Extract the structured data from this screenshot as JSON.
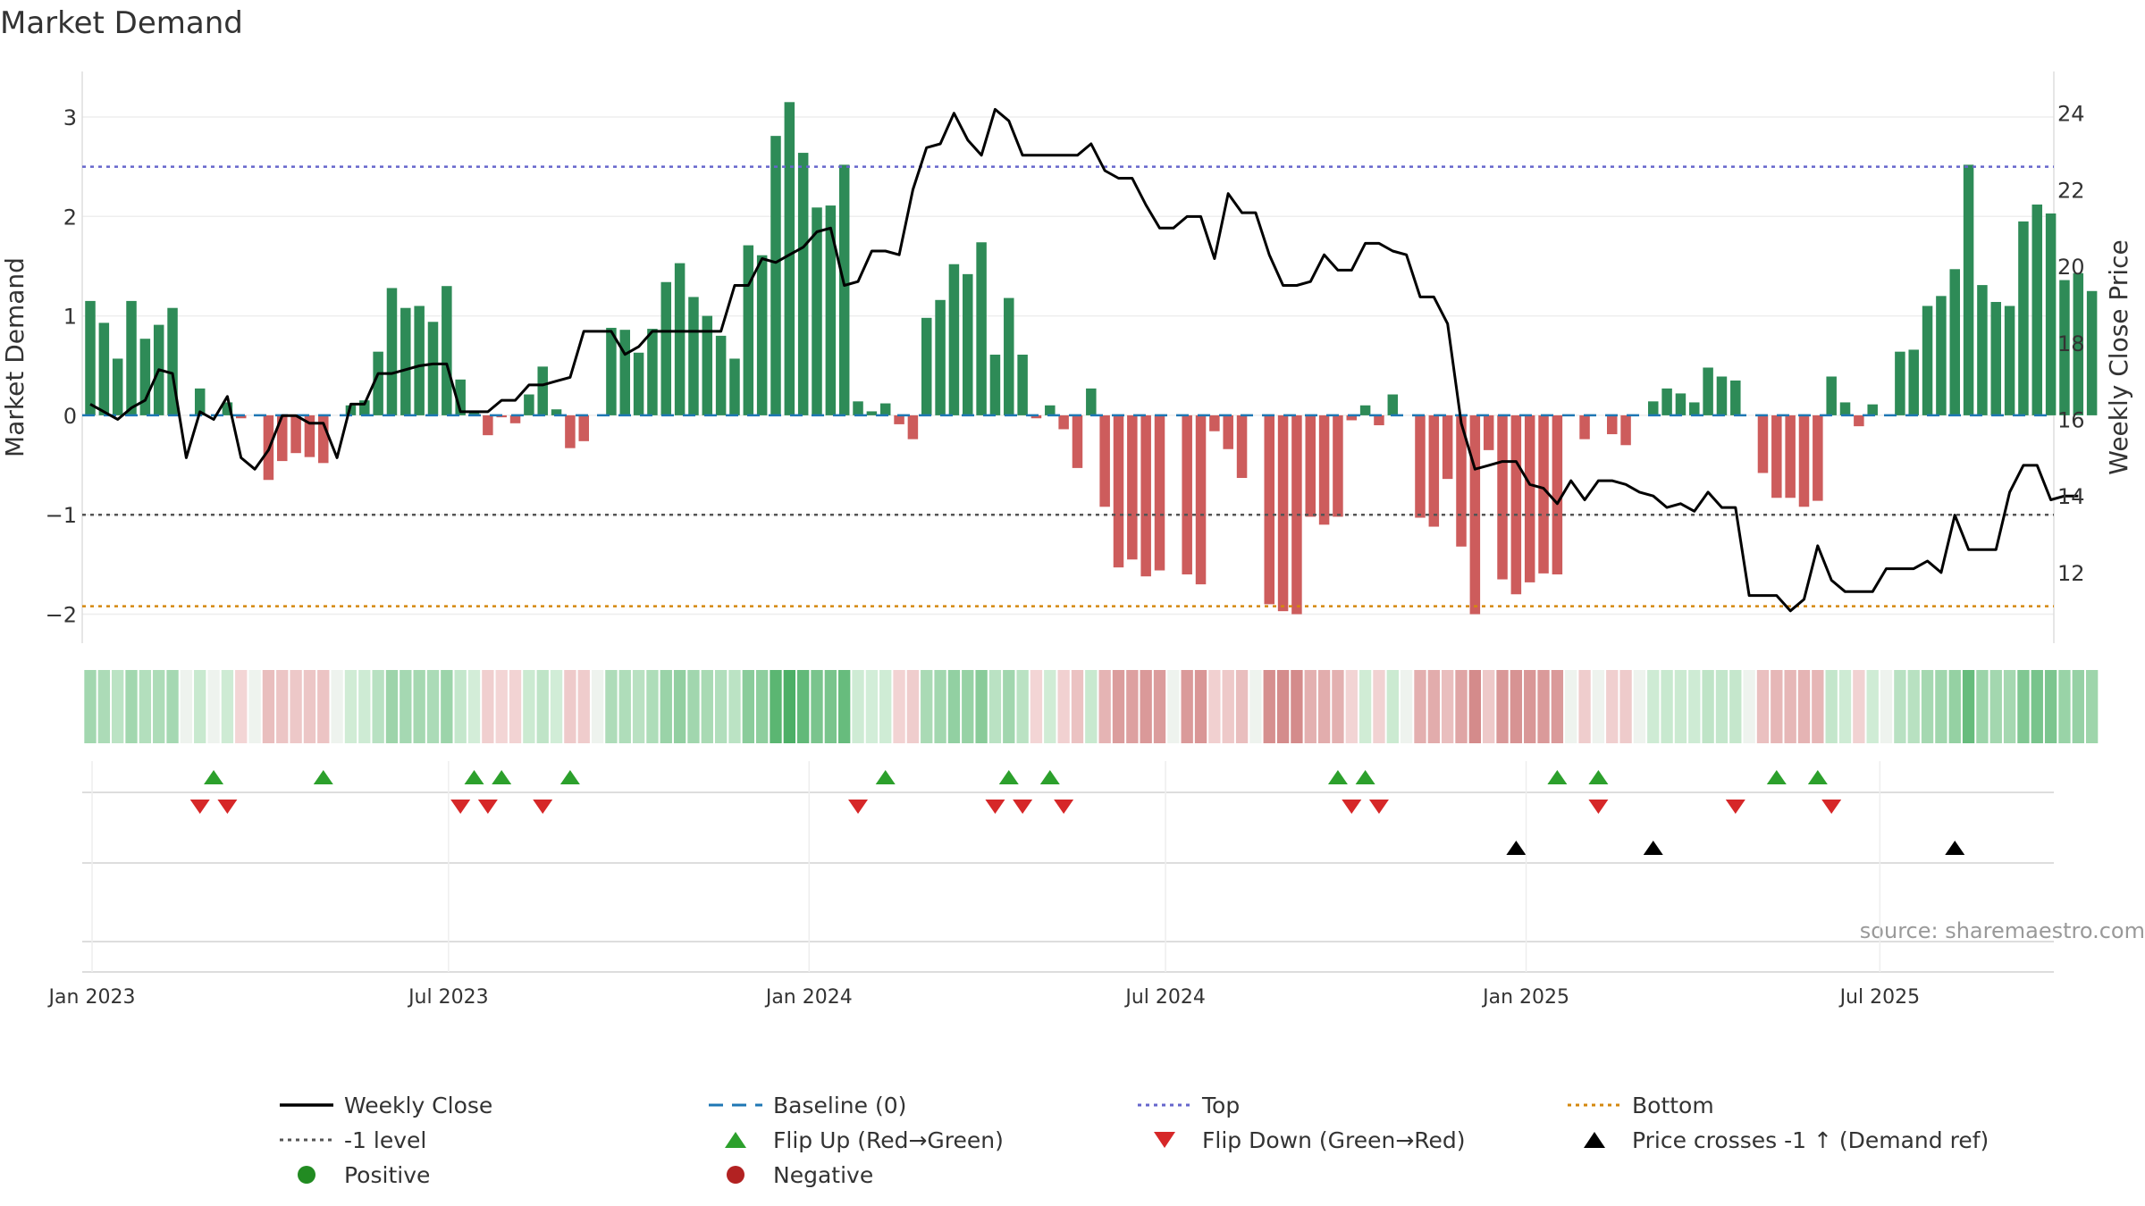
{
  "chart_data": {
    "type": "bar",
    "title": "Market Demand",
    "source": "source: sharemaestro.com",
    "ylabel_left": "Market Demand",
    "ylabel_right": "Weekly Close Price",
    "ylim_left": [
      -2.3,
      3.4
    ],
    "ylim_right": [
      10.6,
      25.0
    ],
    "yticks_left": [
      -2,
      -1,
      0,
      1,
      2,
      3
    ],
    "ytick_labels_left": [
      "−2",
      "−1",
      "0",
      "1",
      "2",
      "3"
    ],
    "yticks_right": [
      12,
      14,
      16,
      18,
      20,
      22,
      24
    ],
    "ytick_labels_right": [
      "12",
      "14",
      "16",
      "18",
      "20",
      "22",
      "24"
    ],
    "x_ticks": [
      {
        "label": "Jan 2023",
        "week": 0
      },
      {
        "label": "Jul 2023",
        "week": 26
      },
      {
        "label": "Jan 2024",
        "week": 52.3
      },
      {
        "label": "Jul 2024",
        "week": 78.3
      },
      {
        "label": "Jan 2025",
        "week": 104.6
      },
      {
        "label": "Jul 2025",
        "week": 130.4
      }
    ],
    "x_start_label": "2023-01-06 (weekly)",
    "reference_lines": {
      "top": 2.5,
      "bottom": -1.92,
      "minus_one": -1,
      "baseline": 0
    },
    "demand": [
      1.15,
      0.93,
      0.57,
      1.15,
      0.77,
      0.91,
      1.08,
      0.0,
      0.27,
      0.0,
      0.13,
      -0.03,
      0.0,
      -0.65,
      -0.46,
      -0.38,
      -0.42,
      -0.48,
      0.0,
      0.1,
      0.15,
      0.64,
      1.28,
      1.08,
      1.1,
      0.94,
      1.3,
      0.36,
      0.03,
      -0.2,
      -0.02,
      -0.08,
      0.21,
      0.49,
      0.06,
      -0.33,
      -0.26,
      0.0,
      0.88,
      0.86,
      0.63,
      0.87,
      1.34,
      1.53,
      1.19,
      1.0,
      0.8,
      0.57,
      1.71,
      1.61,
      2.81,
      3.15,
      2.64,
      2.09,
      2.11,
      2.52,
      0.14,
      0.04,
      0.12,
      -0.09,
      -0.24,
      0.98,
      1.16,
      1.52,
      1.42,
      1.74,
      0.61,
      1.18,
      0.61,
      -0.03,
      0.1,
      -0.14,
      -0.53,
      0.27,
      -0.92,
      -1.53,
      -1.45,
      -1.62,
      -1.56,
      0.0,
      -1.6,
      -1.7,
      -0.16,
      -0.34,
      -0.63,
      0.0,
      -1.9,
      -1.97,
      -2.0,
      -1.02,
      -1.1,
      -1.02,
      -0.05,
      0.1,
      -0.1,
      0.21,
      0.0,
      -1.03,
      -1.12,
      -0.64,
      -1.32,
      -2.0,
      -0.35,
      -1.65,
      -1.8,
      -1.68,
      -1.59,
      -1.6,
      0.0,
      -0.24,
      0.0,
      -0.19,
      -0.3,
      0.0,
      0.14,
      0.27,
      0.22,
      0.13,
      0.48,
      0.39,
      0.35,
      0.0,
      -0.58,
      -0.83,
      -0.83,
      -0.92,
      -0.86,
      0.39,
      0.13,
      -0.11,
      0.11,
      0.0,
      0.64,
      0.66,
      1.1,
      1.2,
      1.47,
      2.52,
      1.31,
      1.14,
      1.1,
      1.95,
      2.12,
      2.03,
      1.36,
      1.43,
      1.25
    ],
    "close": [
      16.4,
      16.2,
      16.0,
      16.3,
      16.5,
      17.3,
      17.2,
      15.0,
      16.2,
      16.0,
      16.6,
      15.0,
      14.7,
      15.2,
      16.1,
      16.1,
      15.9,
      15.9,
      15.0,
      16.4,
      16.4,
      17.2,
      17.2,
      17.3,
      17.4,
      17.45,
      17.45,
      16.2,
      16.2,
      16.2,
      16.5,
      16.5,
      16.9,
      16.9,
      17.0,
      17.1,
      18.3,
      18.3,
      18.3,
      17.7,
      17.9,
      18.3,
      18.3,
      18.3,
      18.3,
      18.3,
      18.3,
      19.5,
      19.5,
      20.2,
      20.1,
      20.3,
      20.5,
      20.9,
      21.0,
      19.5,
      19.6,
      20.4,
      20.4,
      20.3,
      22.0,
      23.1,
      23.2,
      24.0,
      23.3,
      22.9,
      24.1,
      23.8,
      22.9,
      22.9,
      22.9,
      22.9,
      22.9,
      23.2,
      22.5,
      22.3,
      22.3,
      21.6,
      21.0,
      21.0,
      21.3,
      21.3,
      20.2,
      21.9,
      21.4,
      21.4,
      20.3,
      19.5,
      19.5,
      19.6,
      20.3,
      19.9,
      19.9,
      20.6,
      20.6,
      20.4,
      20.3,
      19.2,
      19.2,
      18.5,
      15.9,
      14.7,
      14.8,
      14.9,
      14.9,
      14.3,
      14.2,
      13.8,
      14.4,
      13.9,
      14.4,
      14.4,
      14.3,
      14.1,
      14.0,
      13.7,
      13.8,
      13.6,
      14.1,
      13.7,
      13.7,
      11.4,
      11.4,
      11.4,
      11.0,
      11.3,
      12.7,
      11.8,
      11.5,
      11.5,
      11.5,
      12.1,
      12.1,
      12.1,
      12.3,
      12.0,
      13.5,
      12.6,
      12.6,
      12.6,
      14.1,
      14.8,
      14.8,
      13.9,
      14.0,
      14.0
    ],
    "flip_up_weeks": [
      9,
      17,
      28,
      30,
      35,
      58,
      67,
      70,
      91,
      93,
      107,
      110,
      123,
      126
    ],
    "flip_down_weeks": [
      8,
      10,
      27,
      29,
      33,
      56,
      66,
      68,
      71,
      92,
      94,
      110,
      120,
      127
    ],
    "price_cross_weeks": [
      104,
      114,
      136
    ],
    "legend": [
      {
        "label": "Weekly Close",
        "marker": "solid-line",
        "color": "#000000"
      },
      {
        "label": "Baseline (0)",
        "marker": "dashed-line",
        "color": "#1f77b4"
      },
      {
        "label": "Top",
        "marker": "dotted-line",
        "color": "#6666cc"
      },
      {
        "label": "Bottom",
        "marker": "dotted-line",
        "color": "#d4880f"
      },
      {
        "label": "-1 level",
        "marker": "dotted-line",
        "color": "#555555"
      },
      {
        "label": "Flip Up (Red→Green)",
        "marker": "triangle-up",
        "color": "#2ca02c"
      },
      {
        "label": "Flip Down (Green→Red)",
        "marker": "triangle-down",
        "color": "#d62728"
      },
      {
        "label": "Price crosses -1 ↑ (Demand ref)",
        "marker": "triangle-up",
        "color": "#000000"
      },
      {
        "label": "Positive",
        "marker": "circle",
        "color": "#228b22"
      },
      {
        "label": "Negative",
        "marker": "circle",
        "color": "#b22222"
      }
    ],
    "colors": {
      "positive_bar": "#2e8b57",
      "negative_bar": "#cd5c5c",
      "close_line": "#000000",
      "baseline": "#1f77b4",
      "top": "#6666cc",
      "bottom": "#d4880f",
      "minus_one": "#555555",
      "flip_up": "#2ca02c",
      "flip_down": "#d62728",
      "price_cross": "#000000"
    }
  }
}
